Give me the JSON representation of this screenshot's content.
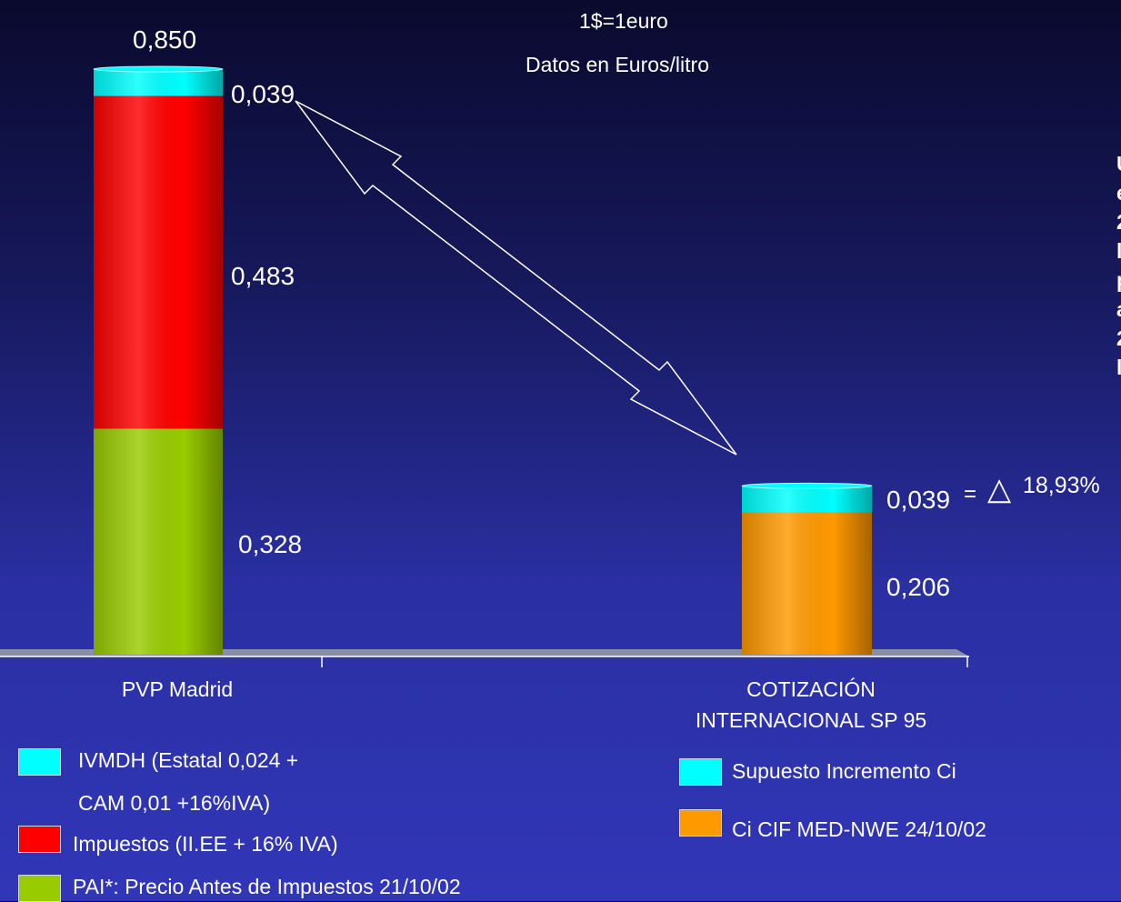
{
  "header": {
    "rate_note": "1$=1euro",
    "units_note": "Datos en Euros/litro"
  },
  "chart_data": {
    "type": "bar",
    "stacked": true,
    "categories": [
      "PVP Madrid",
      "COTIZACIÓN INTERNACIONAL SP 95"
    ],
    "category_lines": [
      [
        "PVP Madrid"
      ],
      [
        "COTIZACIÓN",
        "INTERNACIONAL SP 95"
      ]
    ],
    "stacks": [
      {
        "category": "PVP Madrid",
        "total_label": "0,850",
        "segments": [
          {
            "series": "PAI*: Precio Antes de Impuestos 21/10/02",
            "value": 0.328,
            "label": "0,328",
            "color": "#99cc00"
          },
          {
            "series": "Impuestos (II.EE + 16% IVA)",
            "value": 0.483,
            "label": "0,483",
            "color": "#ff0000"
          },
          {
            "series": "IVMDH (Estatal 0,024 + CAM 0,01 +16%IVA)",
            "value": 0.039,
            "label": "0,039",
            "color": "#00ffff"
          }
        ]
      },
      {
        "category": "COTIZACIÓN INTERNACIONAL SP 95",
        "segments": [
          {
            "series": "Ci CIF MED-NWE 24/10/02",
            "value": 0.206,
            "label": "0,206",
            "color": "#ff9900"
          },
          {
            "series": "Supuesto Incremento Ci",
            "value": 0.039,
            "label": "0,039",
            "color": "#00ffff"
          }
        ]
      }
    ],
    "ylim": [
      0,
      0.85
    ],
    "axis_baseline": 0,
    "annotation": {
      "equals": "=",
      "delta_symbol": "△",
      "text": "18,93%"
    },
    "colors": {
      "cyan": "#00ffff",
      "red": "#ff0000",
      "green": "#99cc00",
      "orange": "#ff9900"
    }
  },
  "legend_left": [
    {
      "lines": [
        "IVMDH (Estatal 0,024 +",
        "CAM  0,01 +16%IVA)"
      ],
      "color": "#00ffff"
    },
    {
      "lines": [
        "Impuestos  (II.EE + 16% IVA)"
      ],
      "color": "#ff0000"
    },
    {
      "lines": [
        "PAI*: Precio Antes de Impuestos 21/10/02"
      ],
      "color": "#99cc00"
    }
  ],
  "legend_right": [
    {
      "lines": [
        "Supuesto Incremento Ci"
      ],
      "color": "#00ffff"
    },
    {
      "lines": [
        "Ci CIF MED-NWE 24/10/02"
      ],
      "color": "#ff9900"
    }
  ],
  "side_text_cut": [
    "U",
    "e",
    "2",
    "l",
    "p",
    "a",
    "2",
    "l"
  ]
}
